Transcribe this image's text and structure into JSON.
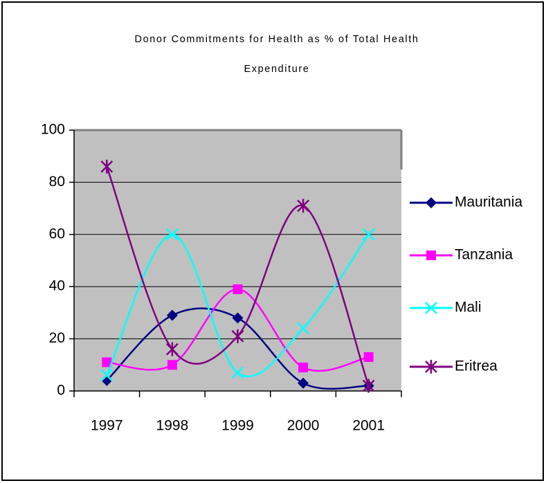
{
  "chart_data": {
    "type": "line",
    "title": "Donor Commitments for Health as % of Total Health Expenditure",
    "categories": [
      "1997",
      "1998",
      "1999",
      "2000",
      "2001"
    ],
    "series": [
      {
        "name": "Mauritania",
        "color": "#000080",
        "marker": "diamond",
        "values": [
          4,
          29,
          28,
          3,
          2
        ]
      },
      {
        "name": "Tanzania",
        "color": "#ff00ff",
        "marker": "square",
        "values": [
          11,
          10,
          39,
          9,
          13
        ]
      },
      {
        "name": "Mali",
        "color": "#00ffff",
        "marker": "x",
        "values": [
          6,
          60,
          7,
          24,
          60
        ]
      },
      {
        "name": "Eritrea",
        "color": "#800080",
        "marker": "asterisk",
        "values": [
          86,
          16,
          21,
          71,
          2
        ]
      }
    ],
    "smooth": true,
    "ylim": [
      0,
      100
    ],
    "yticks": [
      0,
      20,
      40,
      60,
      80,
      100
    ],
    "grid": true,
    "legend": "right"
  }
}
